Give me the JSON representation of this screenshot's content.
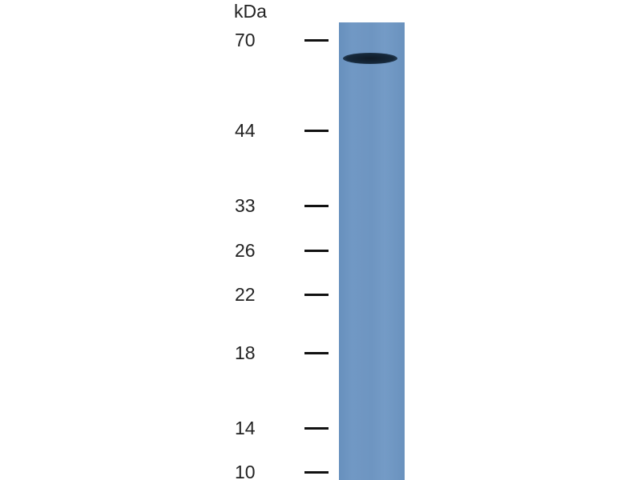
{
  "unit_label": "kDa",
  "markers": [
    {
      "label": "70"
    },
    {
      "label": "44"
    },
    {
      "label": "33"
    },
    {
      "label": "26"
    },
    {
      "label": "22"
    },
    {
      "label": "18"
    },
    {
      "label": "14"
    },
    {
      "label": "10"
    }
  ],
  "lane_color": "#6f96c2",
  "band_color": "#16283a"
}
